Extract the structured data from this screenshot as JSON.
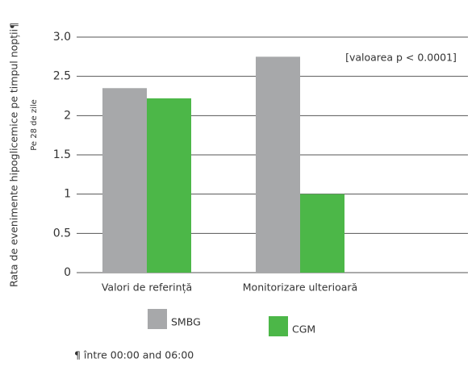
{
  "chart_data": {
    "type": "bar",
    "y_label": "Rata de evenimente hipoglicemice pe timpul nopții¶",
    "y_sublabel": "Pe 28 de zile",
    "annotation": "[valoarea p < 0.0001]",
    "footnote": "¶ între  00:00 and 06:00",
    "categories": [
      "Valori de referință",
      "Monitorizare ulterioară"
    ],
    "series": [
      {
        "name": "SMBG",
        "color": "#a7a8aa",
        "values": [
          2.35,
          2.75
        ]
      },
      {
        "name": "CGM",
        "color": "#4cb748",
        "values": [
          2.22,
          1.0
        ]
      }
    ],
    "ylim": [
      0,
      3
    ],
    "yticks": [
      0,
      0.5,
      1,
      1.5,
      2,
      2.5,
      {
        "value": 3,
        "label": "3.0"
      }
    ],
    "grid": true
  }
}
